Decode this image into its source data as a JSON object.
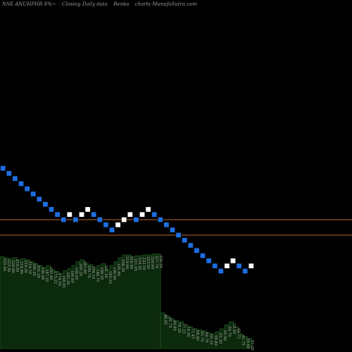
{
  "header": {
    "symbol": "NSE ANUHPHR 8%~",
    "chart_kind": "Closing Daily data",
    "chart_type": "Renko",
    "source": "charts MunafaSutra.com"
  },
  "colors": {
    "background": "#000000",
    "up_brick": "#ffffff",
    "down_brick": "#1e6ee0",
    "brick_outline": "#000000",
    "reference_line": "#b86a2e",
    "volume_fill": "#0c2a0c",
    "volume_edge": "#1f5a1f",
    "label": "#b0b0b0"
  },
  "chart_data": {
    "type": "renko",
    "brick_directions": [
      "down",
      "down",
      "down",
      "down",
      "down",
      "down",
      "down",
      "down",
      "down",
      "down",
      "down",
      "up",
      "down",
      "up",
      "up",
      "down",
      "down",
      "down",
      "down",
      "up",
      "up",
      "up",
      "down",
      "up",
      "up",
      "down",
      "down",
      "down",
      "down",
      "down",
      "down",
      "down",
      "down",
      "down",
      "down",
      "down",
      "down",
      "up",
      "up",
      "down",
      "down",
      "up"
    ],
    "brick_levels": [
      12,
      11,
      10,
      9,
      8,
      7,
      6,
      5,
      4,
      3,
      2,
      3,
      2,
      3,
      4,
      3,
      2,
      1,
      0,
      1,
      2,
      3,
      2,
      3,
      4,
      3,
      2,
      1,
      0,
      -1,
      -2,
      -3,
      -4,
      -5,
      -6,
      -7,
      -8,
      -7,
      -6,
      -7,
      -8,
      -7
    ],
    "reference_lines": [
      2,
      -1
    ],
    "volume_panel": [
      {
        "heights": [
          0.93,
          0.92,
          0.91,
          0.92,
          0.9,
          0.91,
          0.9,
          0.88,
          0.86,
          0.84,
          0.82,
          0.84,
          0.8,
          0.78,
          0.76,
          0.79,
          0.81,
          0.84,
          0.88,
          0.9,
          0.86,
          0.85,
          0.82,
          0.84,
          0.86,
          0.8,
          0.84,
          0.88,
          0.92,
          0.95,
          0.95,
          0.93,
          0.94,
          0.94,
          0.95,
          0.95,
          0.96,
          0.96
        ]
      },
      {
        "heights": [
          0.36,
          0.33,
          0.3,
          0.28,
          0.27,
          0.24,
          0.22,
          0.2,
          0.19,
          0.18,
          0.16,
          0.15,
          0.17,
          0.2,
          0.24,
          0.27,
          0.22,
          0.15,
          0.12,
          0.1
        ]
      }
    ],
    "volume_labels": [
      "225.00",
      "223.30",
      "220.80",
      "219.50",
      "218.90",
      "216.30",
      "214.10",
      "206.20",
      "201.20",
      "196.80",
      "187.10",
      "192.45",
      "175.25",
      "174.50",
      "168.95",
      "182.30",
      "190.60",
      "194.05",
      "200.20",
      "201.60",
      "195.70",
      "194.10",
      "186.75",
      "188.35",
      "191.30",
      "185.25",
      "190.50",
      "195.60",
      "206.20",
      "219.60",
      "226.90",
      "221.65",
      "224.20",
      "222.50",
      "223.50",
      "226.60",
      "227.70",
      "230.50",
      "86.85",
      "81.75",
      "80.80",
      "78.30",
      "77.25",
      "74.50",
      "71.45",
      "68.90",
      "65.70",
      "64.70",
      "60.10",
      "58.80",
      "62.30",
      "65.90",
      "68.70",
      "73.30",
      "68.75",
      "61.75",
      "59.60",
      "57.25"
    ]
  }
}
